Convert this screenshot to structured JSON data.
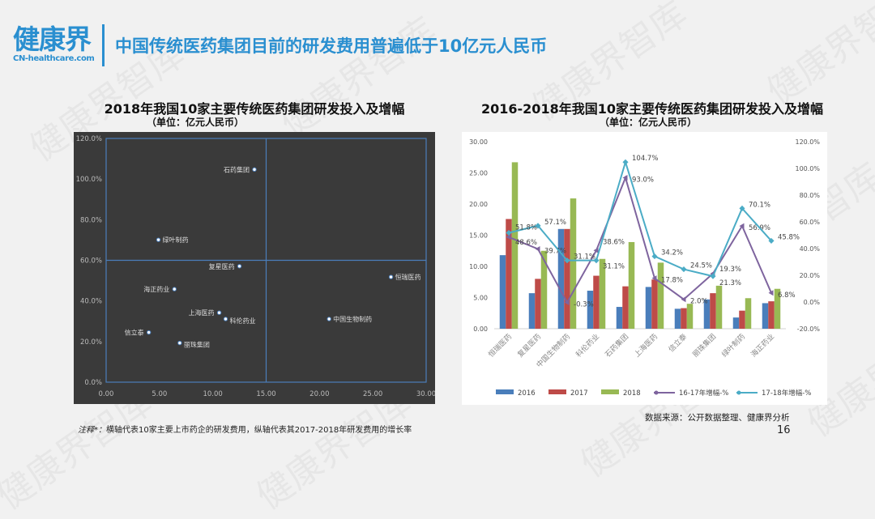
{
  "watermark": "健康界智库",
  "logo": {
    "cn": "健康界",
    "en": "CN-healthcare.com"
  },
  "title": "中国传统医药集团目前的研发费用普遍低于10亿元人民币",
  "footer": {
    "note_prefix": "注释*：",
    "note": "横轴代表10家主要上市药企的研发费用，纵轴代表其2017-2018年研发费用的增长率",
    "source": "数据来源：公开数据整理、健康界分析",
    "page_number": "16"
  },
  "colors": {
    "accent": "#2a8fd0",
    "s2016": "#4a7ebb",
    "s2017": "#be4b48",
    "s2018": "#98b954",
    "g1617": "#7e649e",
    "g1718": "#4bacc6"
  },
  "chart_data": [
    {
      "type": "scatter",
      "title": "2018年我国10家主要传统医药集团研发投入及增幅",
      "subtitle": "（单位：亿元人民币）",
      "xlim": [
        0,
        30
      ],
      "ylim": [
        0,
        120
      ],
      "xticks": [
        "0.00",
        "5.00",
        "10.00",
        "15.00",
        "20.00",
        "25.00",
        "30.00"
      ],
      "yticks": [
        "0.0%",
        "20.0%",
        "40.0%",
        "60.0%",
        "80.0%",
        "100.0%",
        "120.0%"
      ],
      "quadrant_lines": {
        "x": 15,
        "y": 60
      },
      "grid": false,
      "points": [
        {
          "label": "石药集团",
          "x": 13.9,
          "y": 104.7
        },
        {
          "label": "绿叶制药",
          "x": 4.9,
          "y": 70.1
        },
        {
          "label": "复星医药",
          "x": 12.5,
          "y": 57.1
        },
        {
          "label": "恒瑞医药",
          "x": 26.7,
          "y": 51.8
        },
        {
          "label": "海正药业",
          "x": 6.4,
          "y": 45.8
        },
        {
          "label": "上海医药",
          "x": 10.6,
          "y": 34.2
        },
        {
          "label": "科伦药业",
          "x": 11.2,
          "y": 31.1
        },
        {
          "label": "中国生物制药",
          "x": 20.9,
          "y": 31.1
        },
        {
          "label": "信立泰",
          "x": 4.0,
          "y": 24.5
        },
        {
          "label": "丽珠集团",
          "x": 6.9,
          "y": 19.3
        }
      ]
    },
    {
      "type": "bar",
      "title": "2016-2018年我国10家主要传统医药集团研发投入及增幅",
      "subtitle": "（单位：亿元人民币）",
      "categories": [
        "恒瑞医药",
        "复星医药",
        "中国生物制药",
        "科伦药业",
        "石药集团",
        "上海医药",
        "信立泰",
        "丽珠集团",
        "绿叶制药",
        "海正药业"
      ],
      "ylim": [
        0,
        30
      ],
      "y2lim": [
        -20,
        120
      ],
      "yticks": [
        "0.00",
        "5.00",
        "10.00",
        "15.00",
        "20.00",
        "25.00",
        "30.00"
      ],
      "y2ticks": [
        "-20.0%",
        "0.0%",
        "20.0%",
        "40.0%",
        "60.0%",
        "80.0%",
        "100.0%",
        "120.0%"
      ],
      "legend": "bottom",
      "series": [
        {
          "name": "2016",
          "kind": "bar",
          "values": [
            11.8,
            5.7,
            16.0,
            6.1,
            3.5,
            6.7,
            3.2,
            4.7,
            1.8,
            4.1
          ]
        },
        {
          "name": "2017",
          "kind": "bar",
          "values": [
            17.6,
            8.0,
            16.0,
            8.5,
            6.8,
            7.9,
            3.3,
            5.7,
            2.9,
            4.4
          ]
        },
        {
          "name": "2018",
          "kind": "bar",
          "values": [
            26.7,
            12.5,
            20.9,
            11.2,
            13.9,
            10.6,
            4.0,
            6.9,
            4.9,
            6.4
          ]
        },
        {
          "name": "16-17年增幅-%",
          "kind": "line",
          "axis": "right",
          "values": [
            48.6,
            39.7,
            -0.3,
            38.6,
            93.0,
            17.8,
            2.0,
            21.3,
            56.9,
            6.8
          ],
          "labels": [
            "48.6%",
            "39.7%",
            "-0.3%",
            "38.6%",
            "93.0%",
            "17.8%",
            "2.0%",
            "21.3%",
            "56.9%",
            "6.8%"
          ]
        },
        {
          "name": "17-18年增幅-%",
          "kind": "line",
          "axis": "right",
          "values": [
            51.8,
            57.1,
            31.1,
            31.1,
            104.7,
            34.2,
            24.5,
            19.3,
            70.1,
            45.8
          ],
          "labels": [
            "51.8%",
            "57.1%",
            "31.1%",
            "31.1%",
            "104.7%",
            "34.2%",
            "24.5%",
            "19.3%",
            "70.1%",
            "45.8%"
          ]
        }
      ]
    }
  ]
}
